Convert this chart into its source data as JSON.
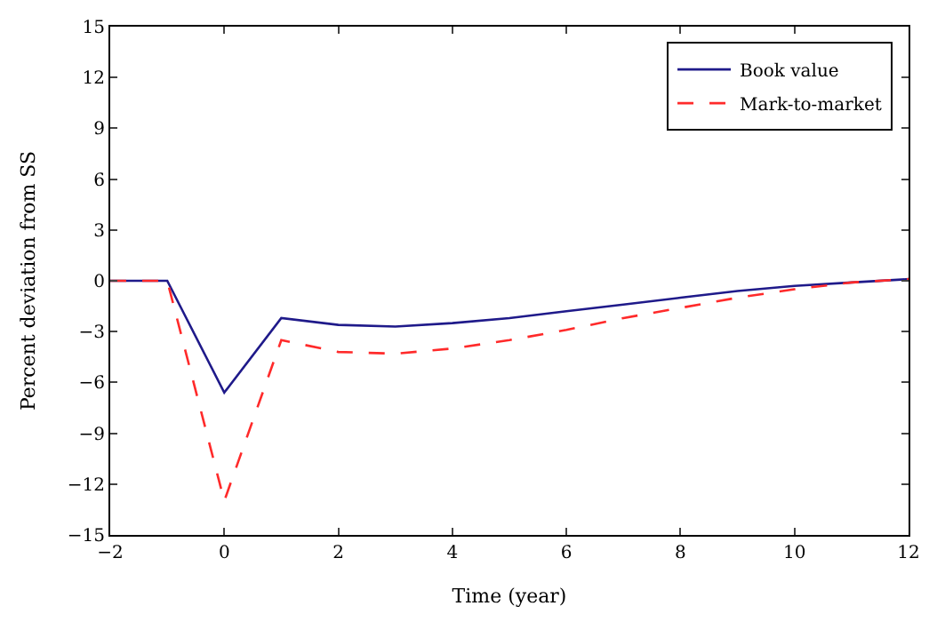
{
  "chart_data": {
    "type": "line",
    "xlabel": "Time (year)",
    "ylabel": "Percent deviation from SS",
    "x": [
      -2,
      -1,
      0,
      1,
      2,
      3,
      4,
      5,
      6,
      7,
      8,
      9,
      10,
      11,
      12
    ],
    "series": [
      {
        "name": "Book value",
        "color": "#1f1a8a",
        "line_style": "solid",
        "values": [
          0,
          0,
          -6.6,
          -2.2,
          -2.6,
          -2.7,
          -2.5,
          -2.2,
          -1.8,
          -1.4,
          -1.0,
          -0.6,
          -0.3,
          -0.1,
          0.1
        ]
      },
      {
        "name": "Mark-to-market",
        "color": "#ff2a2a",
        "line_style": "dashed",
        "values": [
          0,
          0,
          -13,
          -3.5,
          -4.2,
          -4.3,
          -4.0,
          -3.5,
          -2.9,
          -2.2,
          -1.6,
          -1.0,
          -0.5,
          -0.1,
          0.1
        ]
      }
    ],
    "xlim": [
      -2,
      12
    ],
    "xticks": [
      -2,
      0,
      2,
      4,
      6,
      8,
      10,
      12
    ],
    "ylim": [
      -15,
      15
    ],
    "yticks": [
      -15,
      -12,
      -9,
      -6,
      -3,
      0,
      3,
      6,
      9,
      12,
      15
    ],
    "legend": "top right",
    "marker": "none"
  }
}
